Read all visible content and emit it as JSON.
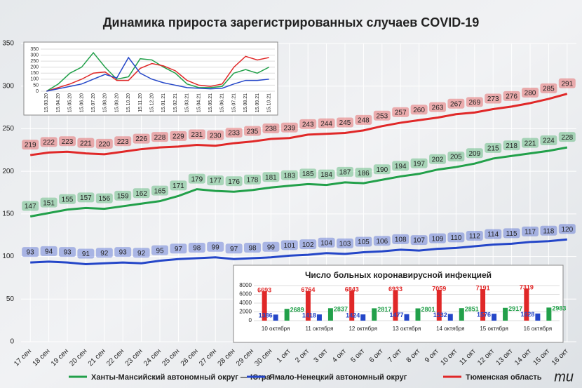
{
  "chart_data": [
    {
      "type": "line",
      "title": "Динамика прироста зарегистрированных случаев COVID-19",
      "categories": [
        "17 сен",
        "18 сен",
        "19 сен",
        "20 сен",
        "21 сен",
        "22 сен",
        "23 сен",
        "24 сен",
        "25 сен",
        "26 сен",
        "27 сен",
        "28 сен",
        "29 сен",
        "30 сен",
        "1 окт",
        "2 окт",
        "3 окт",
        "4 окт",
        "5 окт",
        "6 окт",
        "7 окт",
        "8 окт",
        "9 окт",
        "10 окт",
        "11 окт",
        "12 окт",
        "13 окт",
        "14 окт",
        "15 окт",
        "16 окт"
      ],
      "ylim": [
        0,
        350
      ],
      "yticks": [
        0,
        50,
        100,
        150,
        200,
        250,
        300,
        350
      ],
      "grid": true,
      "series": [
        {
          "name": "Ханты-Мансийский автономный округ — Югра",
          "color": "#22a04a",
          "values": [
            147,
            151,
            155,
            157,
            156,
            159,
            162,
            165,
            171,
            179,
            177,
            176,
            178,
            181,
            183,
            185,
            184,
            187,
            186,
            190,
            194,
            197,
            202,
            205,
            209,
            215,
            218,
            221,
            224,
            228
          ]
        },
        {
          "name": "Ямало-Ненецкий автономный округ",
          "color": "#2446c8",
          "values": [
            93,
            94,
            93,
            91,
            92,
            93,
            92,
            95,
            97,
            98,
            99,
            97,
            98,
            99,
            101,
            102,
            104,
            103,
            105,
            106,
            108,
            107,
            109,
            110,
            112,
            114,
            115,
            117,
            118,
            120
          ]
        },
        {
          "name": "Тюменская область",
          "color": "#e02828",
          "values": [
            219,
            222,
            223,
            221,
            220,
            223,
            226,
            228,
            229,
            231,
            230,
            233,
            235,
            238,
            239,
            243,
            244,
            245,
            248,
            253,
            257,
            260,
            263,
            267,
            269,
            273,
            276,
            280,
            285,
            291
          ]
        }
      ]
    },
    {
      "type": "line",
      "categories": [
        "15.03.20",
        "15.04.20",
        "15.05.20",
        "15.06.20",
        "15.07.20",
        "15.08.20",
        "15.09.20",
        "15.10.20",
        "15.11.20",
        "15.12.20",
        "15.01.21",
        "15.02.21",
        "15.03.21",
        "15.04.21",
        "15.05.21",
        "15.06.21",
        "15.07.21",
        "15.08.21",
        "15.09.21",
        "15.10.21"
      ],
      "ylim": [
        0,
        350
      ],
      "yticks": [
        0,
        50,
        100,
        150,
        200,
        250,
        300,
        350
      ],
      "grid": true,
      "series": [
        {
          "color": "#22a04a",
          "values": [
            0,
            60,
            150,
            200,
            320,
            200,
            100,
            120,
            270,
            260,
            200,
            150,
            60,
            30,
            30,
            40,
            150,
            180,
            150,
            200
          ]
        },
        {
          "color": "#e02828",
          "values": [
            0,
            30,
            60,
            100,
            150,
            160,
            90,
            90,
            190,
            230,
            210,
            170,
            90,
            50,
            40,
            60,
            200,
            290,
            260,
            280
          ]
        },
        {
          "color": "#2446c8",
          "values": [
            0,
            20,
            40,
            60,
            100,
            140,
            110,
            280,
            150,
            100,
            70,
            50,
            30,
            25,
            20,
            25,
            60,
            90,
            90,
            100
          ]
        }
      ]
    },
    {
      "type": "bar",
      "title": "Число больных коронавирусной инфекцией",
      "categories": [
        "10 октября",
        "11 октября",
        "12 октября",
        "13 октября",
        "14 октября",
        "15 октября",
        "16 октября"
      ],
      "ylim": [
        0,
        8000
      ],
      "yticks": [
        0,
        2000,
        4000,
        6000,
        8000
      ],
      "grid": true,
      "series": [
        {
          "color": "#e02828",
          "values": [
            6693,
            6764,
            6843,
            6933,
            7059,
            7191,
            7319
          ]
        },
        {
          "color": "#2446c8",
          "values": [
            1386,
            1418,
            1424,
            1477,
            1532,
            1576,
            1628
          ]
        },
        {
          "color": "#22a04a",
          "values": [
            2689,
            2837,
            2817,
            2801,
            2851,
            2917,
            2983
          ]
        }
      ]
    }
  ],
  "watermark": "mu"
}
